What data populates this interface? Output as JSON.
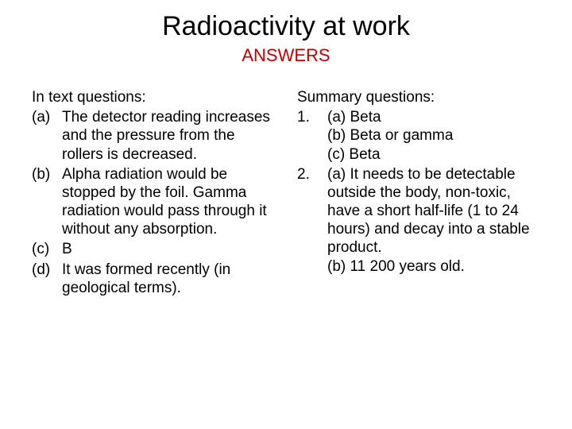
{
  "title": "Radioactivity at work",
  "subtitle": "ANSWERS",
  "colors": {
    "background": "#ffffff",
    "text": "#000000",
    "subtitle": "#c00000"
  },
  "left": {
    "heading": "In text questions:",
    "items": [
      {
        "label": "(a)",
        "text": "The detector reading increases and the pressure from the rollers is decreased."
      },
      {
        "label": "(b)",
        "text": "Alpha radiation would be stopped by the foil. Gamma radiation would pass through it without any absorption."
      },
      {
        "label": "(c)",
        "text": "B"
      },
      {
        "label": "(d)",
        "text": "It was formed recently (in geological terms)."
      }
    ]
  },
  "right": {
    "heading": "Summary questions:",
    "items": [
      {
        "label": "1.",
        "lines": [
          "(a) Beta",
          "(b) Beta or gamma",
          "(c) Beta"
        ]
      },
      {
        "label": "2.",
        "lines": [
          "(a) It needs to be detectable outside the body, non-toxic, have a short half-life (1 to 24 hours) and decay into a stable product.",
          "(b) 11 200 years old."
        ]
      }
    ]
  }
}
